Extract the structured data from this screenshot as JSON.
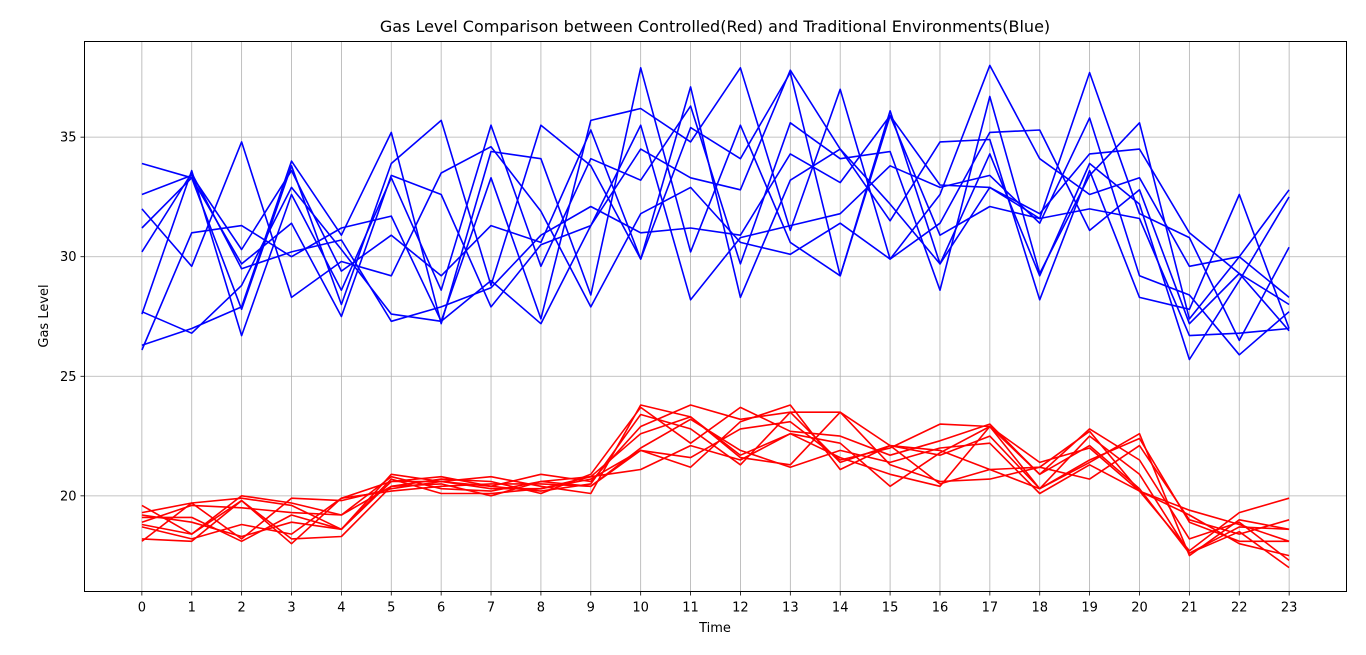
{
  "chart_data": {
    "type": "line",
    "title": "Gas Level Comparison between Controlled(Red) and Traditional Environments(Blue)",
    "xlabel": "Time",
    "ylabel": "Gas Level",
    "x": [
      0,
      1,
      2,
      3,
      4,
      5,
      6,
      7,
      8,
      9,
      10,
      11,
      12,
      13,
      14,
      15,
      16,
      17,
      18,
      19,
      20,
      21,
      22,
      23
    ],
    "xlim": [
      -1.15,
      24.15
    ],
    "ylim": [
      16,
      39
    ],
    "yticks": [
      20,
      25,
      30,
      35
    ],
    "grid": true,
    "colors": {
      "controlled": "#ff0000",
      "traditional": "#0000ff"
    },
    "series": [
      {
        "group": "traditional",
        "values": [
          33.9,
          33.3,
          27.8,
          33.8,
          28.0,
          33.9,
          35.7,
          28.8,
          35.5,
          33.8,
          29.9,
          35.4,
          34.1,
          37.7,
          29.2,
          36.1,
          29.7,
          34.3,
          29.2,
          33.9,
          32.2,
          25.7,
          29.0,
          32.5
        ]
      },
      {
        "group": "traditional",
        "values": [
          26.1,
          31.0,
          31.3,
          30.0,
          31.2,
          31.7,
          27.3,
          33.3,
          27.4,
          35.7,
          36.2,
          34.8,
          37.9,
          31.1,
          37.0,
          29.9,
          32.6,
          38.0,
          34.1,
          32.6,
          33.3,
          29.6,
          30.0,
          32.8
        ]
      },
      {
        "group": "traditional",
        "values": [
          26.3,
          27.0,
          27.9,
          34.0,
          30.9,
          35.2,
          27.2,
          34.4,
          34.1,
          28.4,
          37.9,
          30.2,
          35.5,
          30.6,
          29.2,
          35.9,
          33.0,
          32.9,
          31.6,
          37.7,
          31.8,
          30.8,
          26.5,
          30.4
        ]
      },
      {
        "group": "traditional",
        "values": [
          27.6,
          33.6,
          26.7,
          32.6,
          28.6,
          33.3,
          28.6,
          35.5,
          29.6,
          34.1,
          33.2,
          36.3,
          29.7,
          35.6,
          34.1,
          34.4,
          28.6,
          36.7,
          29.3,
          33.4,
          35.6,
          27.4,
          30.0,
          28.3
        ]
      },
      {
        "group": "traditional",
        "values": [
          32.6,
          33.4,
          30.3,
          33.6,
          29.4,
          30.9,
          29.2,
          31.3,
          30.6,
          35.3,
          29.9,
          37.1,
          28.3,
          33.2,
          34.5,
          31.5,
          34.8,
          34.9,
          28.2,
          33.6,
          28.3,
          27.8,
          32.6,
          27.0
        ]
      },
      {
        "group": "traditional",
        "values": [
          32.0,
          29.6,
          34.8,
          28.3,
          29.8,
          29.2,
          33.5,
          34.6,
          31.9,
          27.9,
          31.8,
          32.9,
          30.6,
          30.1,
          31.4,
          29.9,
          31.4,
          35.2,
          35.3,
          31.1,
          32.8,
          27.2,
          29.3,
          26.9
        ]
      },
      {
        "group": "traditional",
        "values": [
          31.2,
          33.3,
          29.7,
          31.4,
          27.5,
          33.4,
          32.6,
          27.9,
          30.5,
          31.3,
          35.5,
          28.2,
          30.8,
          31.3,
          31.8,
          33.8,
          32.9,
          33.4,
          31.4,
          35.8,
          29.2,
          28.4,
          25.9,
          27.7
        ]
      },
      {
        "group": "traditional",
        "values": [
          30.2,
          33.5,
          29.5,
          30.2,
          30.7,
          27.3,
          27.9,
          28.7,
          30.9,
          32.1,
          31.0,
          31.2,
          30.9,
          34.3,
          33.1,
          35.9,
          30.9,
          32.1,
          31.6,
          32.0,
          31.6,
          26.7,
          26.8,
          27.0
        ]
      },
      {
        "group": "traditional",
        "values": [
          27.7,
          26.8,
          28.8,
          32.9,
          30.3,
          27.6,
          27.3,
          29.0,
          27.2,
          31.3,
          34.5,
          33.3,
          32.8,
          37.8,
          34.5,
          32.2,
          29.7,
          32.9,
          31.8,
          34.3,
          34.5,
          31.0,
          29.3,
          28.0
        ]
      },
      {
        "group": "controlled",
        "values": [
          18.1,
          19.7,
          19.9,
          19.6,
          18.6,
          20.9,
          20.6,
          20.8,
          20.4,
          20.1,
          23.8,
          23.3,
          21.7,
          22.6,
          21.6,
          20.9,
          20.4,
          22.9,
          20.3,
          21.4,
          22.6,
          17.5,
          19.0,
          18.6
        ]
      },
      {
        "group": "controlled",
        "values": [
          18.8,
          18.4,
          19.8,
          18.0,
          19.9,
          20.6,
          20.8,
          20.4,
          20.9,
          20.6,
          22.9,
          23.8,
          23.2,
          23.5,
          21.4,
          22.1,
          20.5,
          21.1,
          21.2,
          22.7,
          20.2,
          17.7,
          19.3,
          19.9
        ]
      },
      {
        "group": "controlled",
        "values": [
          19.2,
          18.9,
          18.3,
          18.9,
          18.6,
          20.7,
          20.1,
          20.1,
          20.3,
          20.7,
          21.9,
          21.2,
          23.1,
          23.8,
          21.1,
          22.1,
          21.9,
          21.1,
          20.3,
          21.5,
          22.4,
          18.9,
          18.1,
          18.1
        ]
      },
      {
        "group": "controlled",
        "values": [
          19.6,
          18.4,
          20.0,
          19.7,
          19.2,
          20.4,
          20.7,
          20.6,
          20.1,
          20.9,
          23.7,
          22.2,
          23.7,
          22.7,
          22.5,
          21.7,
          22.3,
          23.0,
          20.9,
          22.8,
          21.5,
          18.2,
          18.9,
          17.3
        ]
      },
      {
        "group": "controlled",
        "values": [
          18.7,
          18.2,
          18.8,
          18.4,
          19.9,
          20.2,
          20.4,
          20.5,
          20.5,
          20.4,
          21.9,
          21.6,
          22.8,
          23.1,
          21.5,
          22.0,
          23.0,
          22.9,
          21.4,
          22.0,
          20.2,
          19.2,
          18.0,
          17.5
        ]
      },
      {
        "group": "controlled",
        "values": [
          18.9,
          19.6,
          19.5,
          19.3,
          19.2,
          20.8,
          20.3,
          20.2,
          20.6,
          20.8,
          22.6,
          23.3,
          21.6,
          21.3,
          23.5,
          22.1,
          21.7,
          22.5,
          20.3,
          22.5,
          20.9,
          17.6,
          18.5,
          17.0
        ]
      },
      {
        "group": "controlled",
        "values": [
          19.3,
          19.7,
          18.2,
          19.9,
          19.8,
          20.3,
          20.6,
          20.4,
          20.2,
          20.5,
          23.4,
          22.8,
          21.3,
          23.5,
          23.5,
          21.3,
          20.6,
          20.7,
          21.2,
          20.7,
          22.1,
          19.0,
          18.4,
          19.0
        ]
      },
      {
        "group": "controlled",
        "values": [
          18.2,
          18.1,
          19.8,
          18.2,
          18.3,
          20.4,
          20.5,
          20.0,
          20.6,
          20.4,
          22.0,
          23.2,
          21.9,
          21.2,
          21.9,
          21.4,
          22.0,
          22.2,
          20.1,
          21.3,
          20.2,
          19.4,
          18.8,
          18.1
        ]
      },
      {
        "group": "controlled",
        "values": [
          19.1,
          19.1,
          18.1,
          19.2,
          18.6,
          20.6,
          20.6,
          20.3,
          20.3,
          20.8,
          21.1,
          22.1,
          21.5,
          22.6,
          22.2,
          20.4,
          21.8,
          22.9,
          20.9,
          22.1,
          20.3,
          17.6,
          18.7,
          18.6
        ]
      }
    ]
  }
}
